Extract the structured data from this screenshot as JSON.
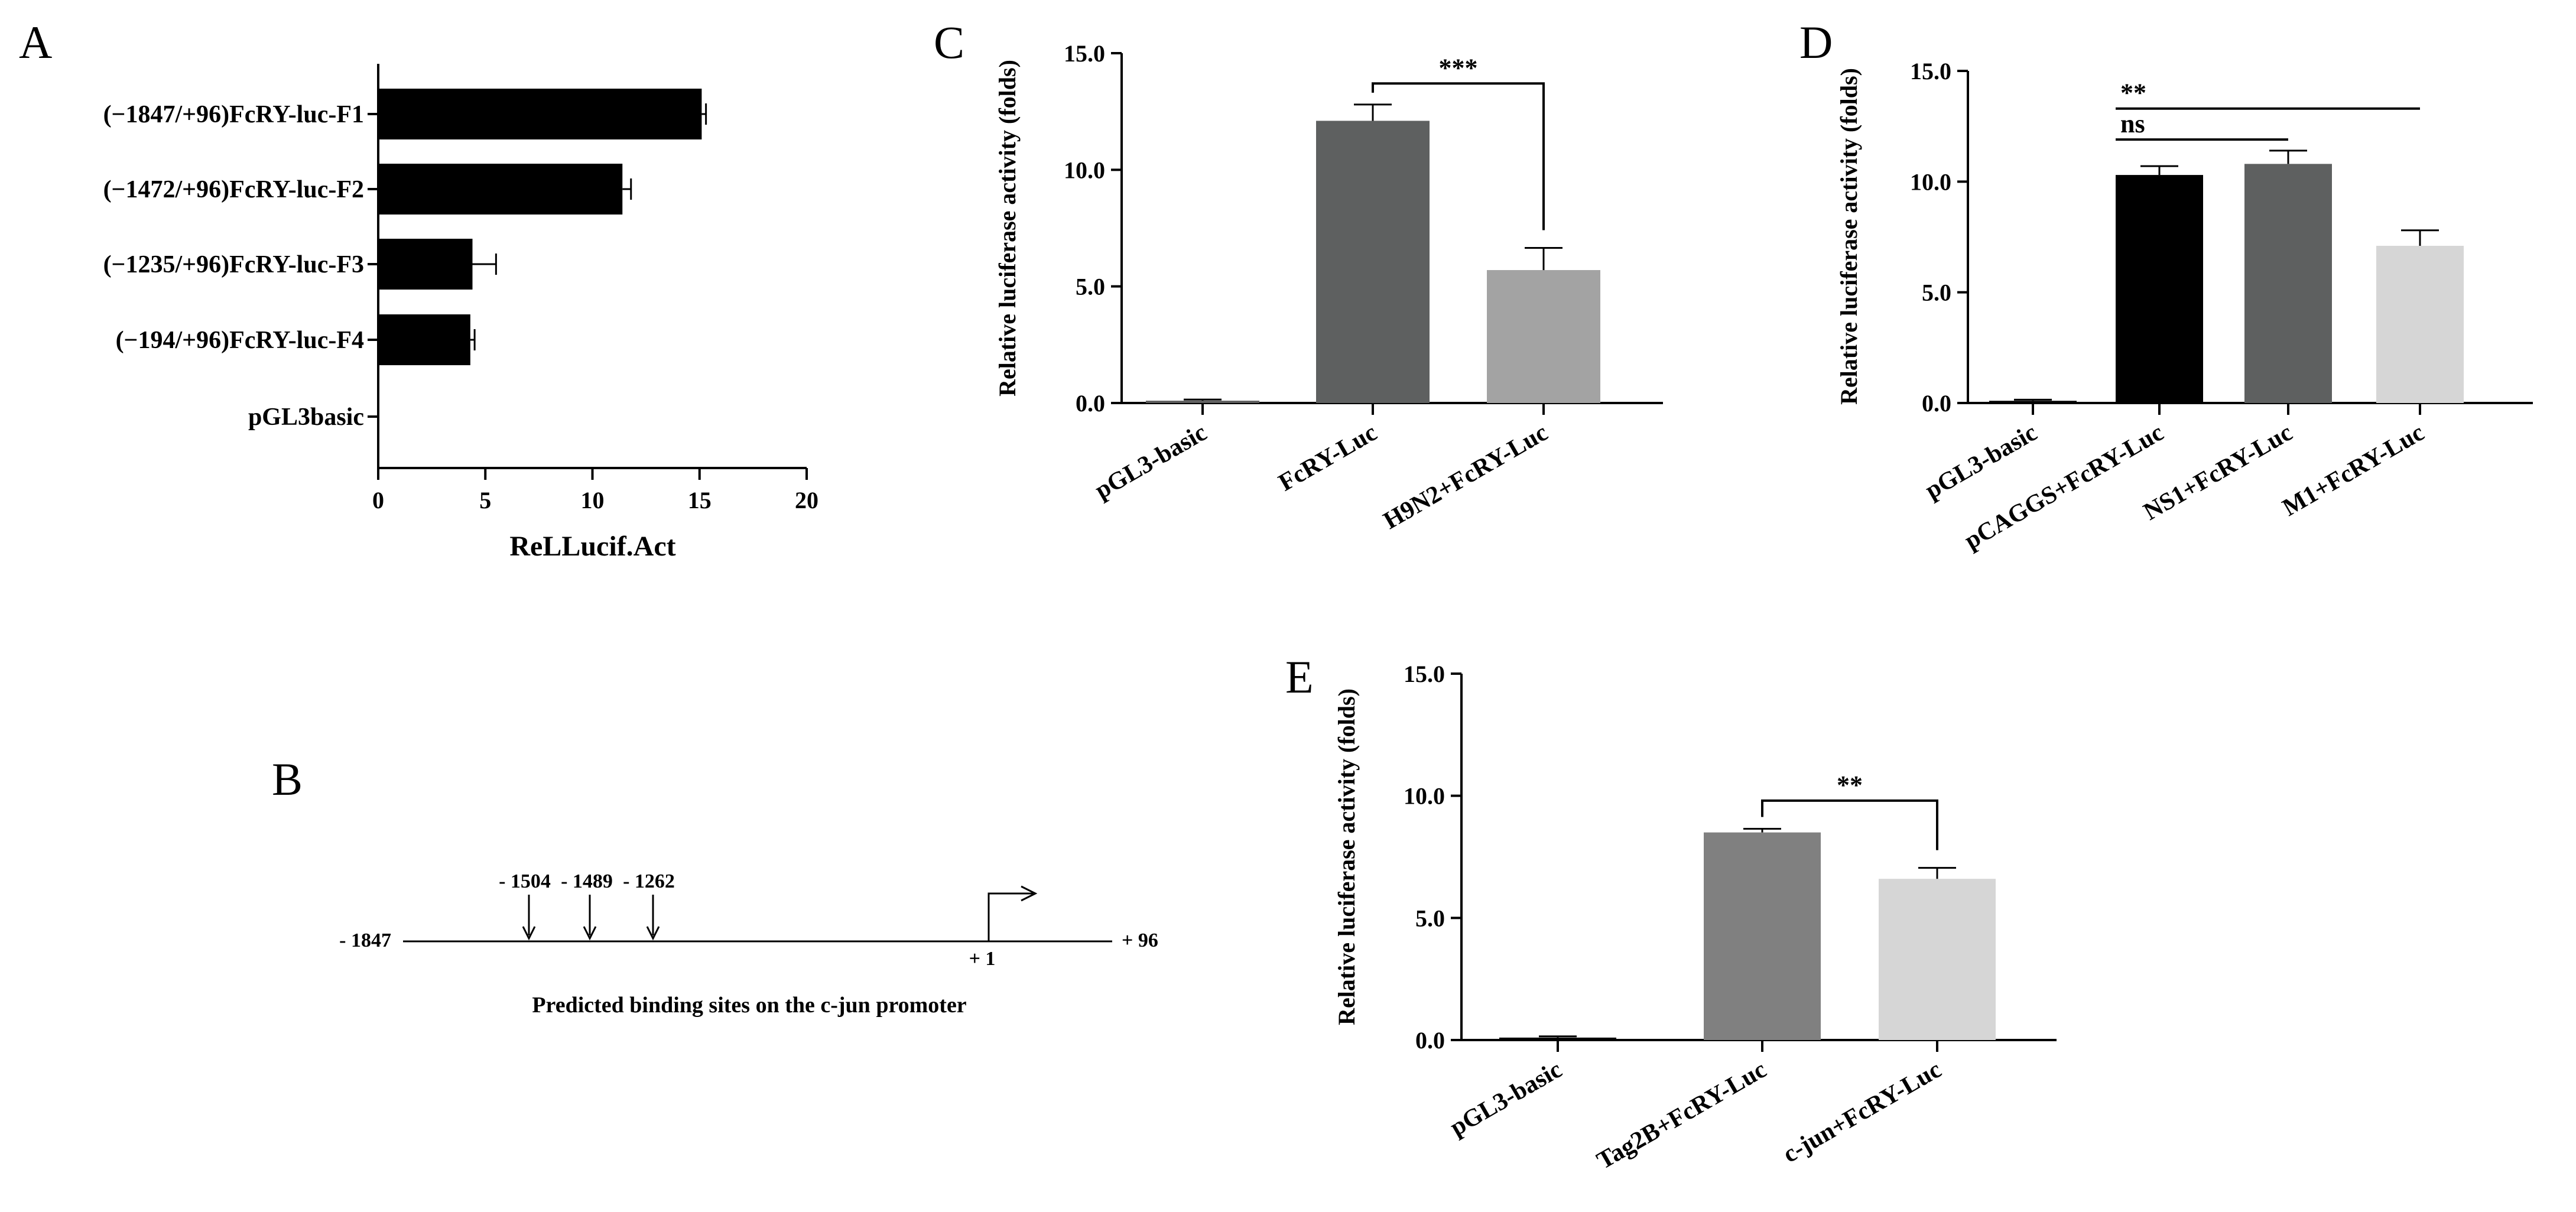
{
  "chart_data": [
    {
      "panel": "A",
      "type": "bar",
      "orientation": "horizontal",
      "categories": [
        "(−1847/+96)FcRY-luc-F1",
        "(−1472/+96)FcRY-luc-F2",
        "(−1235/+96)FcRY-luc-F3",
        "(−194/+96)FcRY-luc-F4",
        "pGL3basic"
      ],
      "values": [
        15.1,
        11.4,
        4.4,
        4.3,
        0
      ],
      "errors": [
        0.2,
        0.4,
        1.1,
        0.2,
        0
      ],
      "colors": [
        "#000000",
        "#000000",
        "#000000",
        "#000000",
        "#000000"
      ],
      "xlabel": "ReLLucif.Act",
      "xlim": [
        0,
        20
      ],
      "xticks": [
        0,
        5,
        10,
        15,
        20
      ],
      "xtick_labels": [
        "0",
        "5",
        "10",
        "15",
        "20"
      ]
    },
    {
      "panel": "C",
      "type": "bar",
      "categories": [
        "pGL3-basic",
        "FcRY-Luc",
        "H9N2+FcRY-Luc"
      ],
      "values": [
        0.1,
        12.1,
        5.7
      ],
      "errors": [
        0.05,
        0.7,
        0.95
      ],
      "colors": [
        "#606060",
        "#5e6060",
        "#a3a3a3"
      ],
      "ylabel": "Relative luciferase activity (folds)",
      "ylim": [
        0,
        15
      ],
      "yticks": [
        0,
        5,
        10,
        15
      ],
      "ytick_labels": [
        "0.0",
        "5.0",
        "10.0",
        "15.0"
      ],
      "significance": [
        {
          "from": 1,
          "to": 2,
          "label": "***",
          "level": 13.7
        }
      ]
    },
    {
      "panel": "D",
      "type": "bar",
      "categories": [
        "pGL3-basic",
        "pCAGGS+FcRY-Luc",
        "NS1+FcRY-Luc",
        "M1+FcRY-Luc"
      ],
      "values": [
        0.1,
        10.3,
        10.8,
        7.1
      ],
      "errors": [
        0.05,
        0.4,
        0.6,
        0.7
      ],
      "colors": [
        "#000000",
        "#000000",
        "#5e6060",
        "#d6d6d6"
      ],
      "ylabel": "Relative luciferase activity (folds)",
      "ylim": [
        0,
        15
      ],
      "yticks": [
        0,
        5,
        10,
        15
      ],
      "ytick_labels": [
        "0.0",
        "5.0",
        "10.0",
        "15.0"
      ],
      "significance": [
        {
          "from": 1,
          "to": 3,
          "label": "**",
          "level": 13.3
        },
        {
          "from": 1,
          "to": 2,
          "label": "ns",
          "level": 11.9
        }
      ]
    },
    {
      "panel": "E",
      "type": "bar",
      "categories": [
        "pGL3-basic",
        "Tag2B+FcRY-Luc",
        "c-jun+FcRY-Luc"
      ],
      "values": [
        0.1,
        8.5,
        6.6
      ],
      "errors": [
        0.05,
        0.15,
        0.45
      ],
      "colors": [
        "#000000",
        "#808080",
        "#d6d6d6"
      ],
      "ylabel": "Relative luciferase activity (folds)",
      "ylim": [
        0,
        15
      ],
      "yticks": [
        0,
        5,
        10,
        15
      ],
      "ytick_labels": [
        "0.0",
        "5.0",
        "10.0",
        "15.0"
      ],
      "significance": [
        {
          "from": 1,
          "to": 2,
          "label": "**",
          "level": 9.8
        }
      ]
    }
  ],
  "diagram_b": {
    "panel": "B",
    "start_label": "- 1847",
    "end_label": "+ 96",
    "tss_label": "+ 1",
    "sites": [
      "- 1504",
      "- 1489",
      "- 1262"
    ],
    "caption": "Predicted binding sites on the c-jun promoter"
  }
}
